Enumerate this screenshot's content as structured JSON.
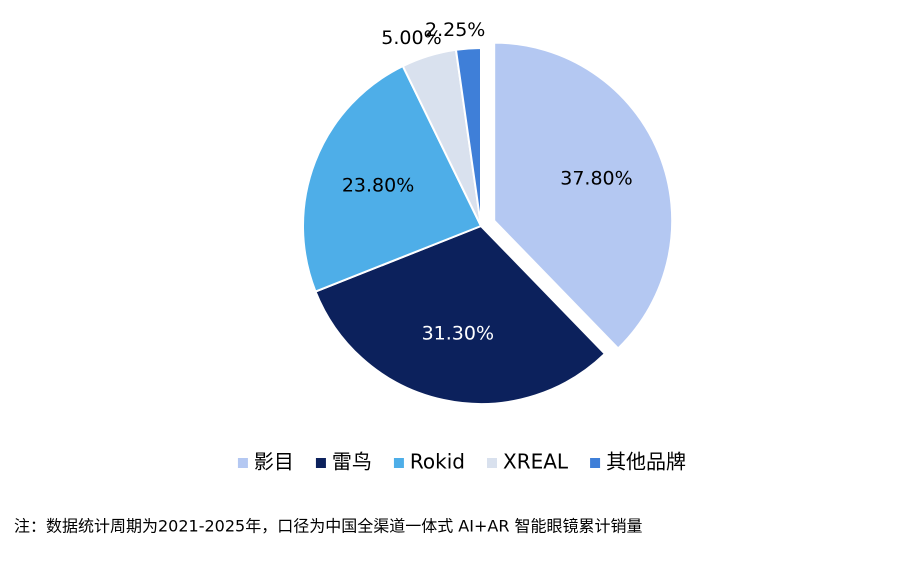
{
  "chart_data": {
    "type": "pie",
    "categories": [
      "影目",
      "雷鸟",
      "Rokid",
      "XREAL",
      "其他品牌"
    ],
    "values": [
      37.8,
      31.3,
      23.8,
      5.0,
      2.25
    ],
    "value_labels": [
      "37.80%",
      "31.30%",
      "23.80%",
      "5.00%",
      "2.25%"
    ],
    "colors": [
      "#b4c8f2",
      "#0c215c",
      "#4eaee8",
      "#d9e1ee",
      "#3f7fd8"
    ],
    "label_colors": [
      "#000000",
      "#ffffff",
      "#000000",
      "#000000",
      "#000000"
    ],
    "explode": [
      0.08,
      0,
      0,
      0,
      0
    ],
    "legend": "bottom",
    "note": "注：数据统计周期为2021-2025年，口径为中国全渠道一体式 AI+AR 智能眼镜累计销量"
  }
}
